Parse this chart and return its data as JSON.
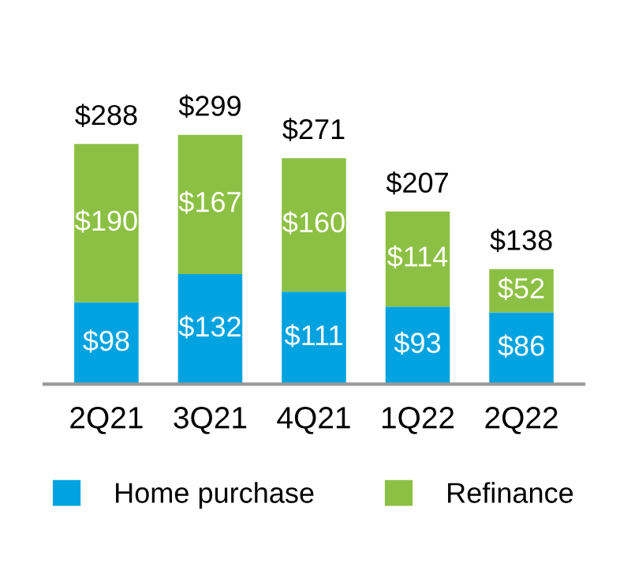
{
  "chart_data": {
    "type": "bar",
    "stacked": true,
    "categories": [
      "2Q21",
      "3Q21",
      "4Q21",
      "1Q22",
      "2Q22"
    ],
    "series": [
      {
        "name": "Home purchase",
        "color": "#00a3e0",
        "values": [
          98,
          132,
          111,
          93,
          86
        ],
        "value_labels": [
          "$98",
          "$132",
          "$111",
          "$93",
          "$86"
        ]
      },
      {
        "name": "Refinance",
        "color": "#8cc044",
        "values": [
          190,
          167,
          160,
          114,
          52
        ],
        "value_labels": [
          "$190",
          "$167",
          "$160",
          "$114",
          "$52"
        ]
      }
    ],
    "totals": [
      "$288",
      "$299",
      "$271",
      "$207",
      "$138"
    ],
    "legend": "bottom",
    "grid": false
  }
}
